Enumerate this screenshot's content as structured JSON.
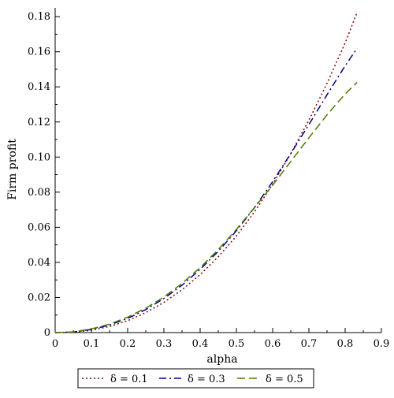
{
  "chart_data": {
    "type": "line",
    "title": "",
    "xlabel": "alpha",
    "ylabel": "Firm profit",
    "xlim": [
      0,
      0.9
    ],
    "ylim": [
      0,
      0.185
    ],
    "x_ticks": [
      0,
      0.1,
      0.2,
      0.3,
      0.4,
      0.5,
      0.6,
      0.7,
      0.8,
      0.9
    ],
    "x_tick_labels": [
      "0",
      "0.1",
      "0.2",
      "0.3",
      "0.4",
      "0.5",
      "0.6",
      "0.7",
      "0.8",
      "0.9"
    ],
    "y_ticks": [
      0,
      0.02,
      0.04,
      0.06,
      0.08,
      0.1,
      0.12,
      0.14,
      0.16,
      0.18
    ],
    "y_tick_labels": [
      "0",
      "0.02",
      "0.04",
      "0.06",
      "0.08",
      "0.10",
      "0.12",
      "0.14",
      "0.16",
      "0.18"
    ],
    "grid": false,
    "legend_position": "bottom",
    "series": [
      {
        "name": "δ = 0.1",
        "color": "#8b0000",
        "dash": "dotted",
        "x": [
          0.0,
          0.05,
          0.1,
          0.15,
          0.2,
          0.25,
          0.3,
          0.35,
          0.4,
          0.45,
          0.5,
          0.55,
          0.6,
          0.65,
          0.7,
          0.75,
          0.8,
          0.833
        ],
        "y": [
          0.0,
          0.0002,
          0.0013,
          0.0035,
          0.0068,
          0.0114,
          0.0172,
          0.0244,
          0.033,
          0.0432,
          0.055,
          0.0688,
          0.0845,
          0.102,
          0.121,
          0.142,
          0.165,
          0.1825
        ]
      },
      {
        "name": "δ = 0.3",
        "color": "#00008b",
        "dash": "dashdot",
        "x": [
          0.0,
          0.05,
          0.1,
          0.15,
          0.2,
          0.25,
          0.3,
          0.35,
          0.4,
          0.45,
          0.5,
          0.55,
          0.6,
          0.65,
          0.7,
          0.75,
          0.8,
          0.833
        ],
        "y": [
          0.0,
          0.0003,
          0.0018,
          0.0043,
          0.0081,
          0.0131,
          0.0194,
          0.027,
          0.036,
          0.0463,
          0.058,
          0.0712,
          0.086,
          0.102,
          0.1185,
          0.1355,
          0.152,
          0.162
        ]
      },
      {
        "name": "δ = 0.5",
        "color": "#4a7a00",
        "dash": "dashed",
        "x": [
          0.0,
          0.05,
          0.1,
          0.15,
          0.2,
          0.25,
          0.3,
          0.35,
          0.4,
          0.45,
          0.5,
          0.55,
          0.6,
          0.65,
          0.7,
          0.75,
          0.8,
          0.833
        ],
        "y": [
          0.0,
          0.0004,
          0.0021,
          0.0048,
          0.0088,
          0.0139,
          0.0203,
          0.028,
          0.037,
          0.0473,
          0.0588,
          0.0713,
          0.084,
          0.0975,
          0.111,
          0.124,
          0.136,
          0.1425
        ]
      }
    ]
  }
}
